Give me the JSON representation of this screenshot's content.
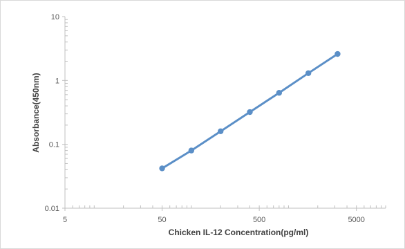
{
  "chart_data": {
    "type": "line",
    "title": "",
    "xlabel": "Chicken IL-12 Concentration(pg/ml)",
    "ylabel": "Absorbance(450nm)",
    "xscale": "log",
    "yscale": "log",
    "xlim": [
      5,
      10000
    ],
    "ylim": [
      0.01,
      10
    ],
    "xticks": [
      {
        "value": 5,
        "label": "5"
      },
      {
        "value": 50,
        "label": "50"
      },
      {
        "value": 500,
        "label": "500"
      },
      {
        "value": 5000,
        "label": "5000"
      }
    ],
    "yticks": [
      {
        "value": 0.01,
        "label": "0.01"
      },
      {
        "value": 0.1,
        "label": "0.1"
      },
      {
        "value": 1,
        "label": "1"
      },
      {
        "value": 10,
        "label": "10"
      }
    ],
    "grid": false,
    "legend": "none",
    "series": [
      {
        "color": "#5b8fc7",
        "x": [
          50,
          100,
          200,
          400,
          800,
          1600,
          3200
        ],
        "y": [
          0.042,
          0.08,
          0.16,
          0.32,
          0.64,
          1.3,
          2.6
        ]
      }
    ]
  }
}
